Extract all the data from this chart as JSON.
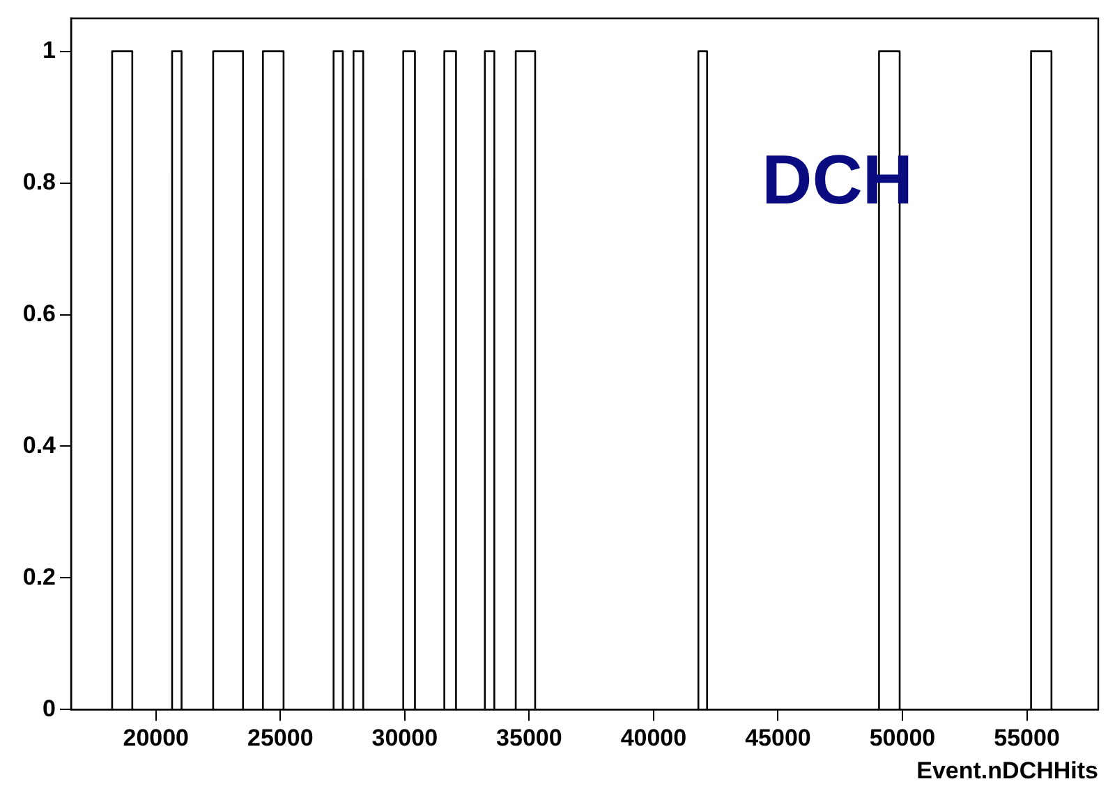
{
  "chart_data": {
    "type": "histogram",
    "xlabel": "Event.nDCHHits",
    "annotations": [
      "DCH"
    ],
    "bins": [
      18240,
      19050,
      20650,
      21030,
      22300,
      23500,
      24300,
      25130,
      27140,
      27510,
      27940,
      28330,
      29940,
      30410,
      31590,
      32060,
      33220,
      33600,
      34460,
      35240,
      41800,
      42150,
      49060,
      49890,
      55170,
      55990
    ],
    "values": [
      1,
      0,
      1,
      0,
      1,
      0,
      1,
      0,
      1,
      0,
      1,
      0,
      1,
      0,
      1,
      0,
      1,
      0,
      1,
      0,
      1,
      0,
      1,
      0,
      1
    ],
    "color": "#000000",
    "xlim": [
      16590,
      57870
    ],
    "ylim": [
      0,
      1.05
    ],
    "xticks": [
      20000,
      25000,
      30000,
      35000,
      40000,
      45000,
      50000,
      55000
    ],
    "yticks": [
      0,
      0.2,
      0.4,
      0.6,
      0.8,
      1
    ],
    "grid": false,
    "legend": false
  }
}
